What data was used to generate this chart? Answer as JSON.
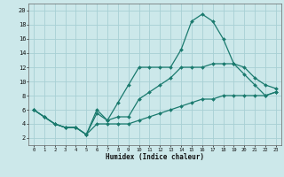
{
  "xlabel": "Humidex (Indice chaleur)",
  "xlim": [
    -0.5,
    23.5
  ],
  "ylim": [
    1,
    21
  ],
  "yticks": [
    2,
    4,
    6,
    8,
    10,
    12,
    14,
    16,
    18,
    20
  ],
  "xticks": [
    0,
    1,
    2,
    3,
    4,
    5,
    6,
    7,
    8,
    9,
    10,
    11,
    12,
    13,
    14,
    15,
    16,
    17,
    18,
    19,
    20,
    21,
    22,
    23
  ],
  "line_color": "#1a7a6e",
  "bg_color": "#cce8ea",
  "grid_color": "#a8d0d4",
  "line1_y": [
    6.0,
    5.0,
    4.0,
    3.5,
    3.5,
    2.5,
    6.0,
    4.5,
    7.0,
    9.5,
    12.0,
    12.0,
    12.0,
    12.0,
    14.5,
    18.5,
    19.5,
    18.5,
    16.0,
    12.5,
    11.0,
    9.5,
    8.0,
    8.5
  ],
  "line2_y": [
    6.0,
    5.0,
    4.0,
    3.5,
    3.5,
    2.5,
    5.5,
    4.5,
    5.0,
    5.0,
    7.5,
    8.5,
    9.5,
    10.5,
    12.0,
    12.0,
    12.0,
    12.5,
    12.5,
    12.5,
    12.0,
    10.5,
    9.5,
    9.0
  ],
  "line3_y": [
    6.0,
    5.0,
    4.0,
    3.5,
    3.5,
    2.5,
    4.0,
    4.0,
    4.0,
    4.0,
    4.5,
    5.0,
    5.5,
    6.0,
    6.5,
    7.0,
    7.5,
    7.5,
    8.0,
    8.0,
    8.0,
    8.0,
    8.0,
    8.5
  ]
}
